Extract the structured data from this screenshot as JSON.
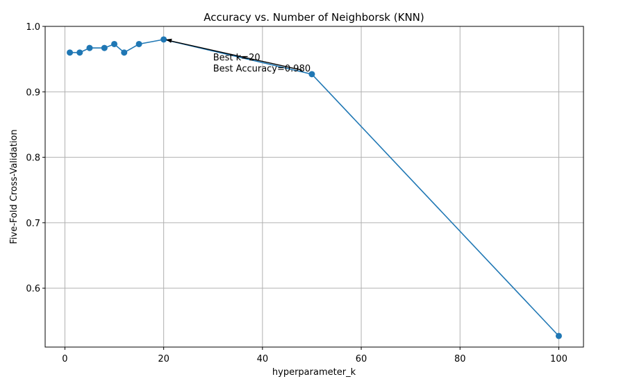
{
  "chart_data": {
    "type": "line",
    "title": "Accuracy vs. Number of Neighborsk (KNN)",
    "xlabel": "hyperparameter_k",
    "ylabel": "Five-Fold Cross-Validation",
    "xlim": [
      -4,
      105
    ],
    "ylim": [
      0.51,
      1.0
    ],
    "xticks": [
      0,
      20,
      40,
      60,
      80,
      100
    ],
    "yticks": [
      0.6,
      0.7,
      0.8,
      0.9,
      1.0
    ],
    "xtick_labels": [
      "0",
      "20",
      "40",
      "60",
      "80",
      "100"
    ],
    "ytick_labels": [
      "0.6",
      "0.7",
      "0.8",
      "0.9",
      "1.0"
    ],
    "grid": true,
    "series": [
      {
        "color": "#1f77b4",
        "marker": "circle",
        "x": [
          1,
          3,
          5,
          8,
          10,
          12,
          15,
          20,
          50,
          100
        ],
        "y": [
          0.96,
          0.96,
          0.967,
          0.967,
          0.973,
          0.96,
          0.973,
          0.98,
          0.927,
          0.527
        ]
      }
    ],
    "annotation": {
      "lines": [
        "Best k=20",
        "Best Accuracy=0.980"
      ],
      "point": [
        20,
        0.98
      ],
      "text_at": [
        30,
        0.948
      ]
    }
  }
}
